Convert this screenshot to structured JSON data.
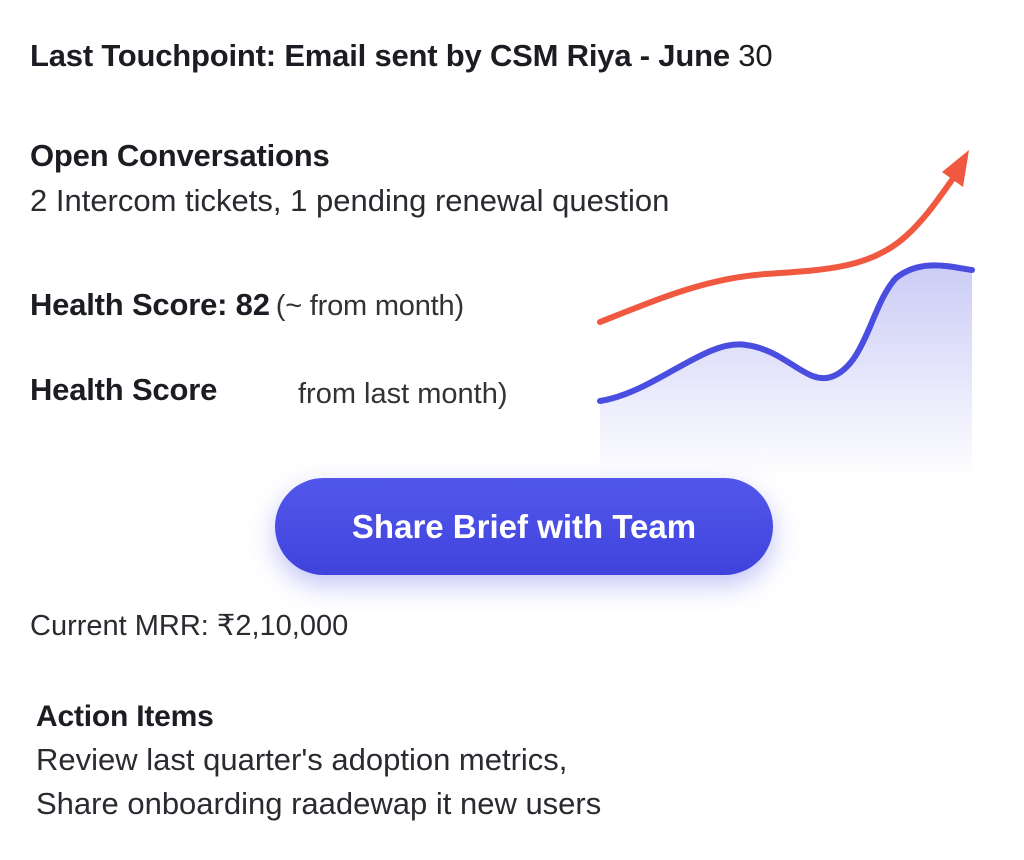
{
  "last_touchpoint": {
    "text": "Last Touchpoint: Email sent by CSM Riya - June",
    "day": "30"
  },
  "open_conversations": {
    "title": "Open Conversations",
    "body": "2 Intercom tickets, 1 pending renewal question"
  },
  "health_score": {
    "label_with_value": "Health Score: 82",
    "paren_note": "(~ from month)",
    "label_2": "Health Score",
    "note_2": "from last month)"
  },
  "trend_chart": {
    "colors": {
      "red_line": "#f0583f",
      "blue_line": "#4a4ee0",
      "blue_fill_top": "#c9caf6",
      "blue_fill_bottom": "#ffffff"
    },
    "icons": [
      "arrow-up-right-icon"
    ]
  },
  "share_button": {
    "label": "Share Brief with Team",
    "color": "#4a4ee6"
  },
  "mrr": {
    "text": "Current MRR: ₹2,10,000"
  },
  "action_items": {
    "title": "Action Items",
    "lines": [
      "Review last quarter's adoption metrics,",
      "Share onboarding raadewap it new users"
    ]
  }
}
